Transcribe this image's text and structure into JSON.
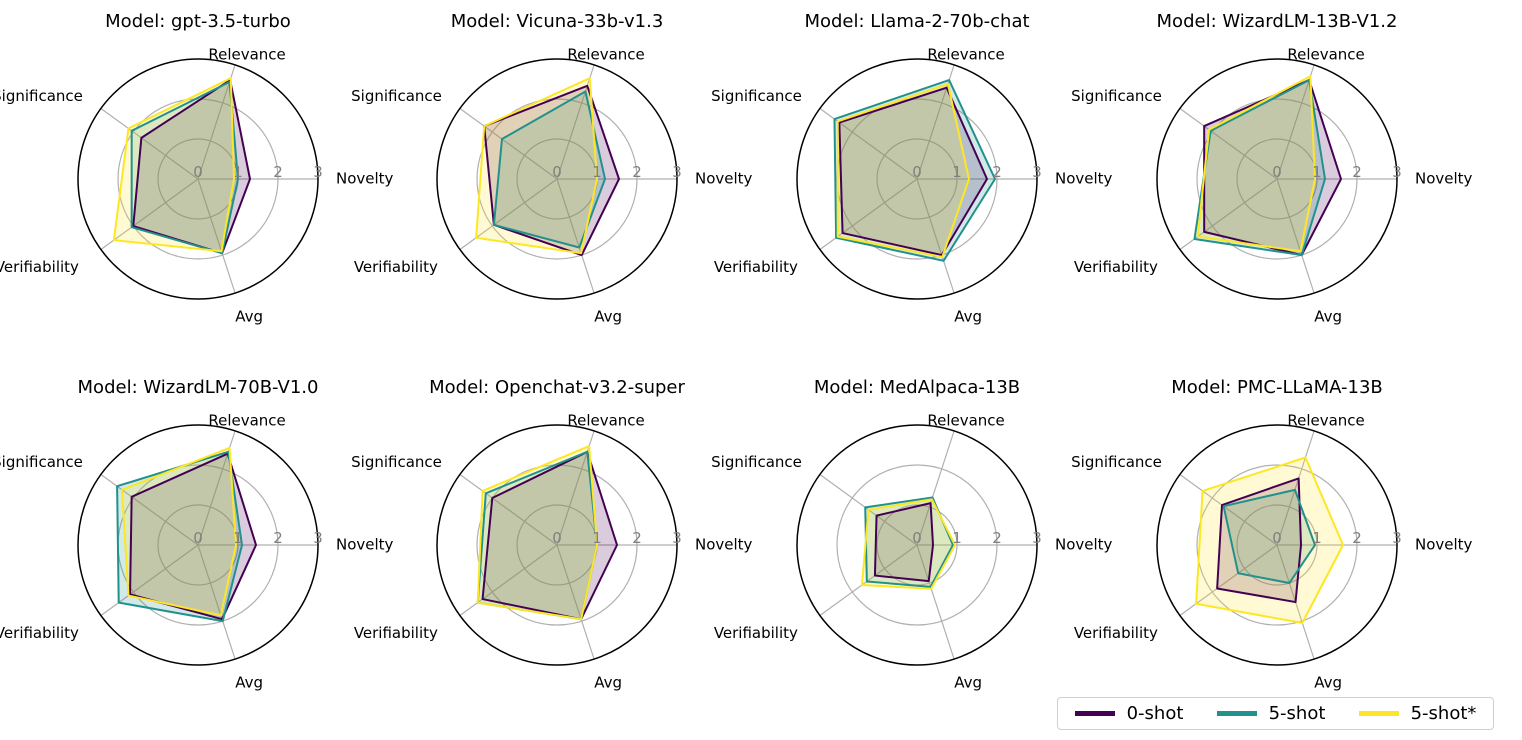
{
  "chart_data": [
    {
      "type": "radar",
      "title": "Model: gpt-3.5-turbo",
      "axes": [
        "Novelty",
        "Relevance",
        "Significance",
        "Verifiability",
        "Avg"
      ],
      "rmax": 3,
      "ticks": [
        "0",
        "1",
        "2",
        "3"
      ],
      "series": [
        {
          "name": "0-shot",
          "values": [
            1.3,
            2.6,
            1.75,
            2.0,
            1.95
          ]
        },
        {
          "name": "5-shot",
          "values": [
            1.0,
            2.55,
            2.05,
            2.05,
            1.95
          ]
        },
        {
          "name": "5-shot*",
          "values": [
            0.9,
            2.65,
            2.15,
            2.6,
            1.9
          ]
        }
      ]
    },
    {
      "type": "radar",
      "title": "Model: Vicuna-33b-v1.3",
      "axes": [
        "Novelty",
        "Relevance",
        "Significance",
        "Verifiability",
        "Avg"
      ],
      "rmax": 3,
      "ticks": [
        "0",
        "1",
        "2",
        "3"
      ],
      "series": [
        {
          "name": "0-shot",
          "values": [
            1.55,
            2.45,
            2.25,
            1.95,
            2.0
          ]
        },
        {
          "name": "5-shot",
          "values": [
            1.2,
            2.3,
            1.7,
            1.95,
            1.8
          ]
        },
        {
          "name": "5-shot*",
          "values": [
            1.0,
            2.65,
            2.25,
            2.5,
            1.95
          ]
        }
      ]
    },
    {
      "type": "radar",
      "title": "Model: Llama-2-70b-chat",
      "axes": [
        "Novelty",
        "Relevance",
        "Significance",
        "Verifiability",
        "Avg"
      ],
      "rmax": 3,
      "ticks": [
        "0",
        "1",
        "2",
        "3"
      ],
      "series": [
        {
          "name": "0-shot",
          "values": [
            1.75,
            2.4,
            2.4,
            2.3,
            2.0
          ]
        },
        {
          "name": "5-shot",
          "values": [
            1.95,
            2.6,
            2.55,
            2.5,
            2.15
          ]
        },
        {
          "name": "5-shot*",
          "values": [
            1.3,
            2.5,
            2.45,
            2.45,
            2.05
          ]
        }
      ]
    },
    {
      "type": "radar",
      "title": "Model: WizardLM-13B-V1.2",
      "axes": [
        "Novelty",
        "Relevance",
        "Significance",
        "Verifiability",
        "Avg"
      ],
      "rmax": 3,
      "ticks": [
        "0",
        "1",
        "2",
        "3"
      ],
      "series": [
        {
          "name": "0-shot",
          "values": [
            1.6,
            2.6,
            2.25,
            2.25,
            2.0
          ]
        },
        {
          "name": "5-shot",
          "values": [
            1.2,
            2.6,
            2.05,
            2.55,
            2.0
          ]
        },
        {
          "name": "5-shot*",
          "values": [
            0.95,
            2.7,
            2.1,
            2.45,
            1.9
          ]
        }
      ]
    },
    {
      "type": "radar",
      "title": "Model: WizardLM-70B-V1.0",
      "axes": [
        "Novelty",
        "Relevance",
        "Significance",
        "Verifiability",
        "Avg"
      ],
      "rmax": 3,
      "ticks": [
        "0",
        "1",
        "2",
        "3"
      ],
      "series": [
        {
          "name": "0-shot",
          "values": [
            1.45,
            2.4,
            2.05,
            2.1,
            1.95
          ]
        },
        {
          "name": "5-shot",
          "values": [
            1.1,
            2.45,
            2.5,
            2.45,
            2.0
          ]
        },
        {
          "name": "5-shot*",
          "values": [
            0.95,
            2.55,
            2.35,
            2.15,
            1.85
          ]
        }
      ]
    },
    {
      "type": "radar",
      "title": "Model: Openchat-v3.2-super",
      "axes": [
        "Novelty",
        "Relevance",
        "Significance",
        "Verifiability",
        "Avg"
      ],
      "rmax": 3,
      "ticks": [
        "0",
        "1",
        "2",
        "3"
      ],
      "series": [
        {
          "name": "0-shot",
          "values": [
            1.5,
            2.45,
            2.0,
            2.3,
            1.95
          ]
        },
        {
          "name": "5-shot",
          "values": [
            1.0,
            2.45,
            2.2,
            2.45,
            1.95
          ]
        },
        {
          "name": "5-shot*",
          "values": [
            1.0,
            2.6,
            2.3,
            2.45,
            1.95
          ]
        }
      ]
    },
    {
      "type": "radar",
      "title": "Model: MedAlpaca-13B",
      "axes": [
        "Novelty",
        "Relevance",
        "Significance",
        "Verifiability",
        "Avg"
      ],
      "rmax": 3,
      "ticks": [
        "0",
        "1",
        "2",
        "3"
      ],
      "series": [
        {
          "name": "0-shot",
          "values": [
            0.4,
            1.1,
            1.25,
            1.3,
            0.95
          ]
        },
        {
          "name": "5-shot",
          "values": [
            0.9,
            1.25,
            1.6,
            1.55,
            1.1
          ]
        },
        {
          "name": "5-shot*",
          "values": [
            0.95,
            1.2,
            1.5,
            1.7,
            1.15
          ]
        }
      ]
    },
    {
      "type": "radar",
      "title": "Model: PMC-LLaMA-13B",
      "axes": [
        "Novelty",
        "Relevance",
        "Significance",
        "Verifiability",
        "Avg"
      ],
      "rmax": 3,
      "ticks": [
        "0",
        "1",
        "2",
        "3"
      ],
      "series": [
        {
          "name": "0-shot",
          "values": [
            0.6,
            1.75,
            1.7,
            1.85,
            1.5
          ]
        },
        {
          "name": "5-shot",
          "values": [
            0.95,
            1.45,
            1.65,
            1.2,
            1.0
          ]
        },
        {
          "name": "5-shot*",
          "values": [
            1.65,
            2.3,
            2.3,
            2.5,
            2.05
          ]
        }
      ]
    }
  ],
  "legend": {
    "position": "bottom-right",
    "entries": [
      {
        "label": "0-shot",
        "color": "#440154"
      },
      {
        "label": "5-shot",
        "color": "#21918c"
      },
      {
        "label": "5-shot*",
        "color": "#fde725"
      }
    ]
  },
  "colors": {
    "0-shot": "#440154",
    "5-shot": "#21918c",
    "5-shot*": "#fde725"
  }
}
